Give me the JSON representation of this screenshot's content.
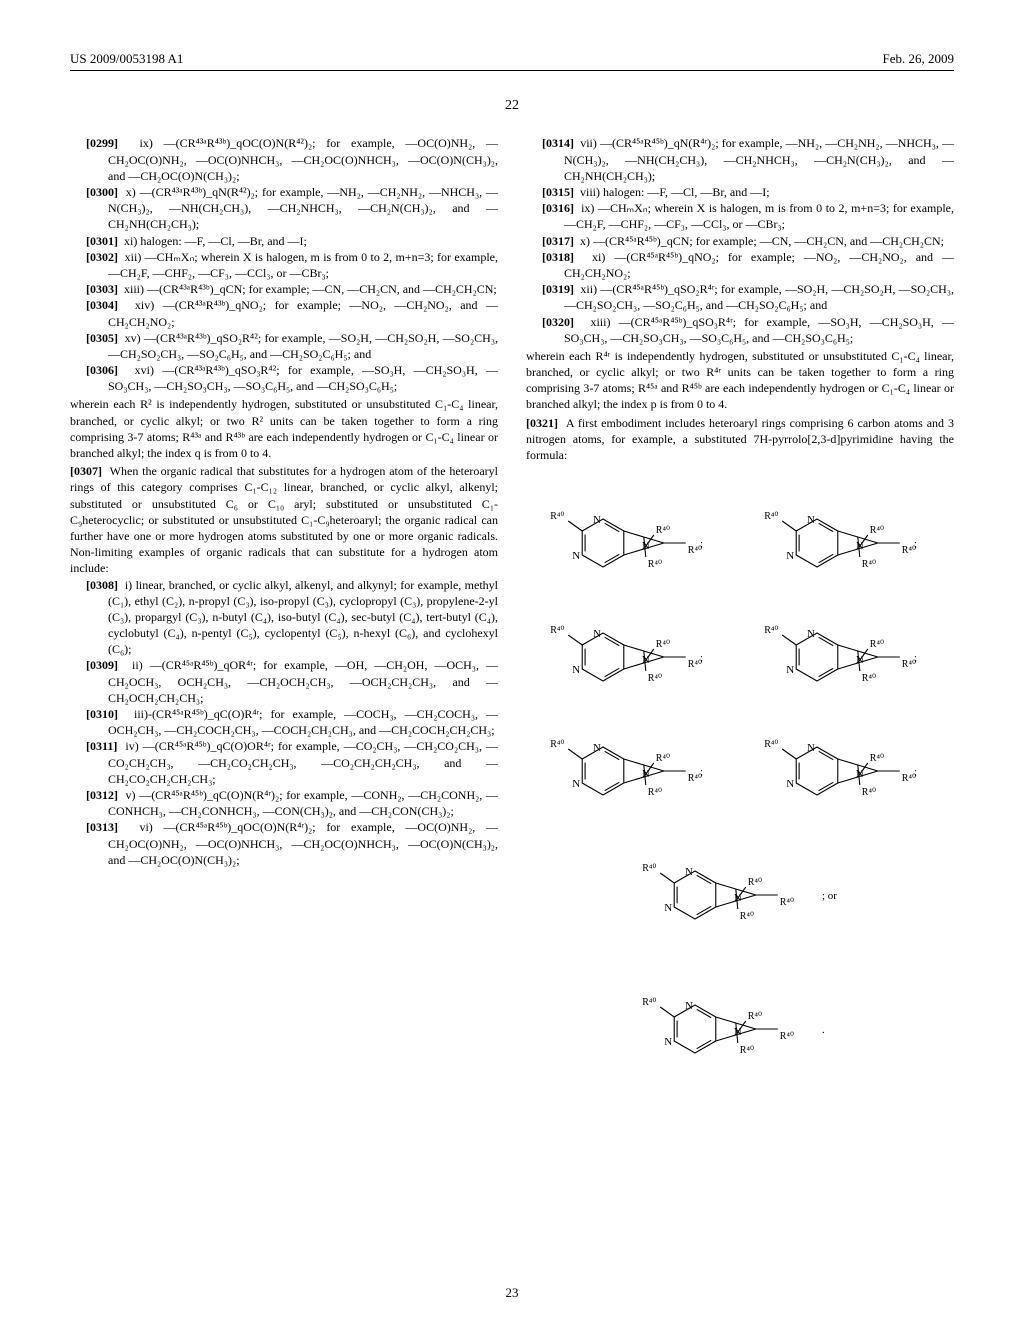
{
  "header": {
    "doc_id": "US 2009/0053198 A1",
    "date": "Feb. 26, 2009"
  },
  "page_number": "22",
  "footer_number": "23",
  "left": {
    "items": [
      {
        "num": "[0299]",
        "roman": "ix)",
        "text": "—(CR⁴³ᵃR⁴³ᵇ)_qOC(O)N(R⁴²)₂; for example, —OC(O)NH₂, —CH₂OC(O)NH₂, —OC(O)NHCH₃, —CH₂OC(O)NHCH₃, —OC(O)N(CH₃)₂, and —CH₂OC(O)N(CH₃)₂;"
      },
      {
        "num": "[0300]",
        "roman": "x)",
        "text": "—(CR⁴³ᵃR⁴³ᵇ)_qN(R⁴²)₂; for example, —NH₂, —CH₂NH₂, —NHCH₃, —N(CH₃)₂, —NH(CH₂CH₃), —CH₂NHCH₃, —CH₂N(CH₃)₂, and —CH₂NH(CH₂CH₃);"
      },
      {
        "num": "[0301]",
        "roman": "xi)",
        "text": "halogen: —F, —Cl, —Br, and —I;"
      },
      {
        "num": "[0302]",
        "roman": "xii)",
        "text": "—CHₘXₙ; wherein X is halogen, m is from 0 to 2, m+n=3; for example, —CH₂F, —CHF₂, —CF₃, —CCl₃, or —CBr₃;"
      },
      {
        "num": "[0303]",
        "roman": "xiii)",
        "text": "—(CR⁴³ᵃR⁴³ᵇ)_qCN; for example; —CN, —CH₂CN, and —CH₂CH₂CN;"
      },
      {
        "num": "[0304]",
        "roman": "xiv)",
        "text": "—(CR⁴³ᵃR⁴³ᵇ)_qNO₂; for example; —NO₂, —CH₂NO₂, and —CH₂CH₂NO₂;"
      },
      {
        "num": "[0305]",
        "roman": "xv)",
        "text": "—(CR⁴³ᵃR⁴³ᵇ)_qSO₂R⁴²; for example, —SO₂H, —CH₂SO₂H, —SO₂CH₃, —CH₂SO₂CH₃, —SO₂C₆H₅, and —CH₂SO₂C₆H₅; and"
      },
      {
        "num": "[0306]",
        "roman": "xvi)",
        "text": "—(CR⁴³ᵃR⁴³ᵇ)_qSO₃R⁴²; for example, —SO₃H, —CH₂SO₃H, —SO₃CH₃, —CH₂SO₃CH₃, —SO₃C₆H₅, and —CH₂SO₃C₆H₅;"
      }
    ],
    "wherein1": "wherein each R² is independently hydrogen, substituted or unsubstituted C₁-C₄ linear, branched, or cyclic alkyl; or two R² units can be taken together to form a ring comprising 3-7 atoms; R⁴³ᵃ and R⁴³ᵇ are each independently hydrogen or C₁-C₄ linear or branched alkyl; the index q is from 0 to 4.",
    "p0307_num": "[0307]",
    "p0307": "When the organic radical that substitutes for a hydrogen atom of the heteroaryl rings of this category comprises C₁-C₁₂ linear, branched, or cyclic alkyl, alkenyl; substituted or unsubstituted C₆ or C₁₀ aryl; substituted or unsubstituted C₁-C₉heterocyclic; or substituted or unsubstituted C₁-C₉heteroaryl; the organic radical can further have one or more hydrogen atoms substituted by one or more organic radicals. Non-limiting examples of organic radicals that can substitute for a hydrogen atom include:",
    "items2": [
      {
        "num": "[0308]",
        "roman": "i)",
        "text": "linear, branched, or cyclic alkyl, alkenyl, and alkynyl; for example, methyl (C₁), ethyl (C₂), n-propyl (C₃), iso-propyl (C₃), cyclopropyl (C₃), propylene-2-yl (C₃), propargyl (C₃), n-butyl (C₄), iso-butyl (C₄), sec-butyl (C₄), tert-butyl (C₄), cyclobutyl (C₄), n-pentyl (C₅), cyclopentyl (C₅), n-hexyl (C₆), and cyclohexyl (C₆);"
      },
      {
        "num": "[0309]",
        "roman": "ii)",
        "text": "—(CR⁴⁵ᵃR⁴⁵ᵇ)_qOR⁴ʳ; for example, —OH, —CH₂OH, —OCH₃, —CH₂OCH₃, OCH₂CH₃, —CH₂OCH₂CH₃, —OCH₂CH₂CH₃, and —CH₂OCH₂CH₂CH₃;"
      },
      {
        "num": "[0310]",
        "roman": "iii)-",
        "text": "(CR⁴⁵ᵃR⁴⁵ᵇ)_qC(O)R⁴ʳ; for example, —COCH₃, —CH₂COCH₃, —OCH₂CH₃, —CH₂COCH₂CH₃, —COCH₂CH₂CH₃, and —CH₂COCH₂CH₂CH₃;"
      },
      {
        "num": "[0311]",
        "roman": "iv)",
        "text": "—(CR⁴⁵ᵃR⁴⁵ᵇ)_qC(O)OR⁴ʳ; for example, —CO₂CH₃, —CH₂CO₂CH₃, —CO₂CH₂CH₃, —CH₂CO₂CH₂CH₃, —CO₂CH₂CH₂CH₃, and —CH₂CO₂CH₂CH₂CH₃;"
      },
      {
        "num": "[0312]",
        "roman": "v)",
        "text": "—(CR⁴⁵ᵃR⁴⁵ᵇ)_qC(O)N(R⁴ʳ)₂; for example, —CONH₂, —CH₂CONH₂, —CONHCH₃, —CH₂CONHCH₃, —CON(CH₃)₂, and —CH₂CON(CH₃)₂;"
      },
      {
        "num": "[0313]",
        "roman": "vi)",
        "text": "—(CR⁴⁵ᵃR⁴⁵ᵇ)_qOC(O)N(R⁴ʳ)₂; for example, —OC(O)NH₂, —CH₂OC(O)NH₂, —OC(O)NHCH₃, —CH₂OC(O)NHCH₃, —OC(O)N(CH₃)₂, and —CH₂OC(O)N(CH₃)₂;"
      }
    ]
  },
  "right": {
    "items": [
      {
        "num": "[0314]",
        "roman": "vii)",
        "text": "—(CR⁴⁵ᵃR⁴⁵ᵇ)_qN(R⁴ʳ)₂; for example, —NH₂, —CH₂NH₂, —NHCH₃, —N(CH₃)₂, —NH(CH₂CH₃), —CH₂NHCH₃, —CH₂N(CH₃)₂, and —CH₂NH(CH₂CH₃);"
      },
      {
        "num": "[0315]",
        "roman": "viii)",
        "text": "halogen: —F, —Cl, —Br, and —I;"
      },
      {
        "num": "[0316]",
        "roman": "ix)",
        "text": "—CHₘXₙ; wherein X is halogen, m is from 0 to 2, m+n=3; for example, —CH₂F, —CHF₂, —CF₃, —CCl₃, or —CBr₃;"
      },
      {
        "num": "[0317]",
        "roman": "x)",
        "text": "—(CR⁴⁵ᵃR⁴⁵ᵇ)_qCN; for example; —CN, —CH₂CN, and —CH₂CH₂CN;"
      },
      {
        "num": "[0318]",
        "roman": "xi)",
        "text": "—(CR⁴⁵ᵃR⁴⁵ᵇ)_qNO₂; for example; —NO₂, —CH₂NO₂, and —CH₂CH₂NO₂;"
      },
      {
        "num": "[0319]",
        "roman": "xii)",
        "text": "—(CR⁴⁵ᵃR⁴⁵ᵇ)_qSO₂R⁴ʳ; for example, —SO₂H, —CH₂SO₂H, —SO₂CH₃, —CH₂SO₂CH₃, —SO₂C₆H₅, and —CH₂SO₂C₆H₅; and"
      },
      {
        "num": "[0320]",
        "roman": "xiii)",
        "text": "—(CR⁴⁵ᵃR⁴⁵ᵇ)_qSO₃R⁴ʳ; for example, —SO₃H, —CH₂SO₃H, —SO₃CH₃, —CH₂SO₃CH₃, —SO₃C₆H₅, and —CH₂SO₃C₆H₅;"
      }
    ],
    "wherein2": "wherein each R⁴ʳ is independently hydrogen, substituted or unsubstituted C₁-C₄ linear, branched, or cyclic alkyl; or two R⁴ʳ units can be taken together to form a ring comprising 3-7 atoms; R⁴⁵ᵃ and R⁴⁵ᵇ are each independently hydrogen or C₁-C₄ linear or branched alkyl; the index p is from 0 to 4.",
    "p0321_num": "[0321]",
    "p0321": "A first embodiment includes heteroaryl rings comprising 6 carbon atoms and 3 nitrogen atoms, for example, a substituted 7H-pyrrolo[2,3-d]pyrimidine having the formula:"
  },
  "diagram": {
    "label": "R⁴⁰",
    "structures": [
      {
        "sep": ";"
      },
      {
        "sep": ";"
      },
      {
        "sep": ";"
      },
      {
        "sep": ";"
      },
      {
        "sep": ";"
      },
      {
        "sep": ";"
      },
      {
        "sep": "; or"
      },
      {
        "sep": "."
      }
    ],
    "stroke": "#000000",
    "stroke_width": 1.1
  }
}
